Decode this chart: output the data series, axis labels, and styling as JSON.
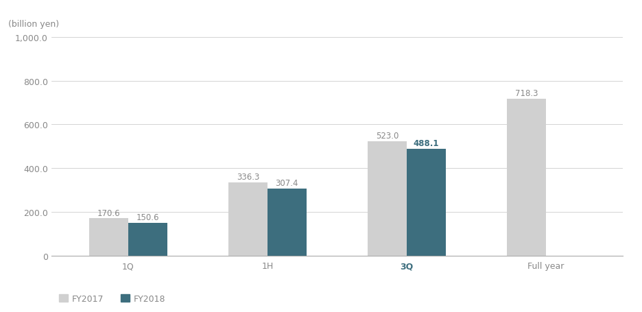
{
  "categories": [
    "1Q",
    "1H",
    "3Q",
    "Full year"
  ],
  "fy2017_values": [
    170.6,
    336.3,
    523.0,
    718.3
  ],
  "fy2018_values": [
    150.6,
    307.4,
    488.1,
    null
  ],
  "fy2017_labels": [
    "170.6",
    "336.3",
    "523.0",
    "718.3"
  ],
  "fy2018_labels": [
    "150.6",
    "307.4",
    "488.1"
  ],
  "fy2017_color": "#d0d0d0",
  "fy2018_color": "#3d6e7e",
  "bar_width": 0.28,
  "ylim": [
    0,
    1000
  ],
  "yticks": [
    0,
    200.0,
    400.0,
    600.0,
    800.0,
    1000.0
  ],
  "ytick_labels": [
    "0",
    "200.0",
    "400.0",
    "600.0",
    "800.0",
    "1,000.0"
  ],
  "ylabel": "(billion yen)",
  "current_quarter": "3Q",
  "label_color_fy2017": "#888888",
  "label_color_fy2018_normal": "#888888",
  "label_color_fy2018_current": "#3d6e7e",
  "legend_fy2017": "FY2017",
  "legend_fy2018": "FY2018",
  "background_color": "#ffffff",
  "grid_color": "#cccccc",
  "axis_label_fontsize": 9,
  "bar_label_fontsize": 8.5,
  "tick_label_fontsize": 9,
  "legend_fontsize": 9
}
